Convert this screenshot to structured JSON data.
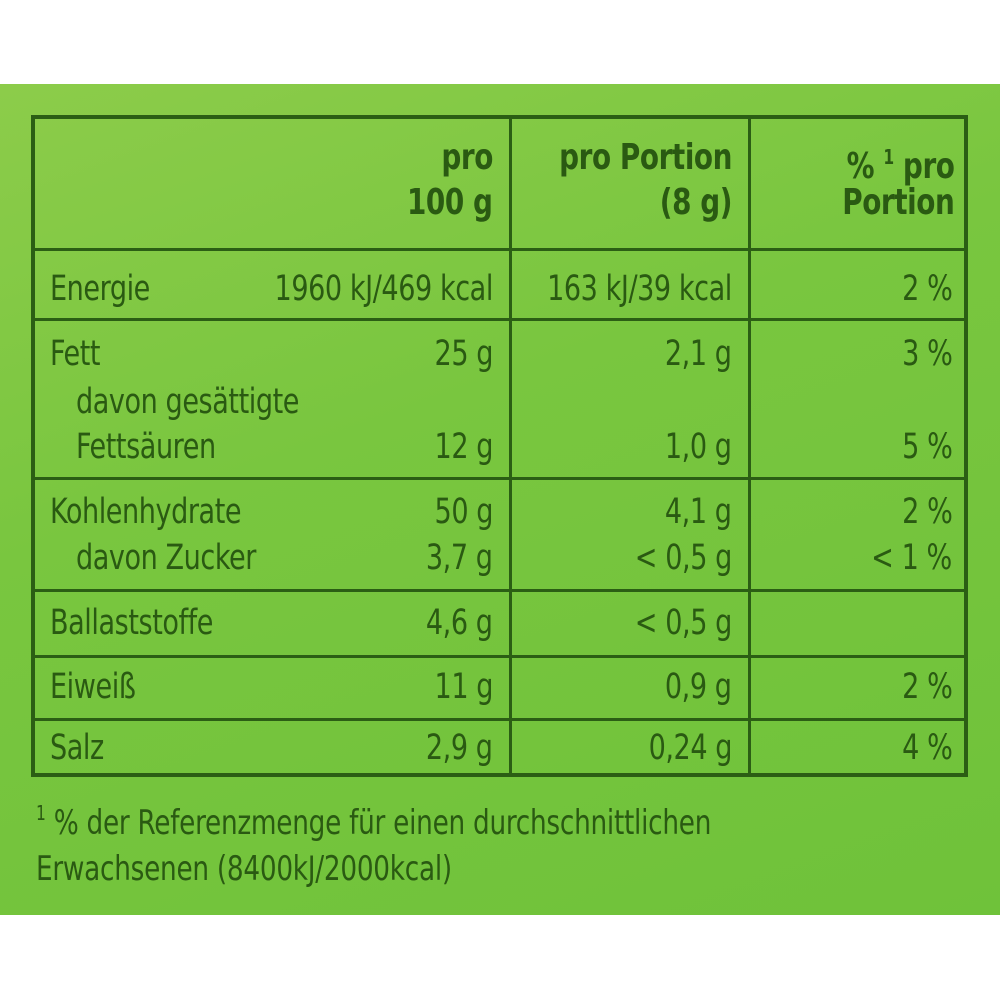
{
  "header": {
    "col1_line1": "pro",
    "col1_line2": "100 g",
    "col2_line1": "pro Portion",
    "col2_line2": "(8 g)",
    "col3_pct": "%",
    "col3_sup": "1",
    "col3_pro": "pro",
    "col3_line2": "Portion"
  },
  "rows": {
    "energie": {
      "label": "Energie",
      "per100": "1960 kJ/469 kcal",
      "portion": "163 kJ/39 kcal",
      "pct": "2 %"
    },
    "fett": {
      "label": "Fett",
      "per100": "25 g",
      "portion": "2,1 g",
      "pct": "3 %"
    },
    "fettsaeuren": {
      "label1": "davon gesättigte",
      "label2": "Fettsäuren",
      "per100": "12 g",
      "portion": "1,0 g",
      "pct": "5 %"
    },
    "kohlenhydrate": {
      "label": "Kohlenhydrate",
      "per100": "50 g",
      "portion": "4,1 g",
      "pct": "2 %"
    },
    "zucker": {
      "label": "davon Zucker",
      "per100": "3,7 g",
      "portion": "< 0,5 g",
      "pct": "< 1 %"
    },
    "ballaststoffe": {
      "label": "Ballaststoffe",
      "per100": "4,6 g",
      "portion": "< 0,5 g",
      "pct": ""
    },
    "eiweiss": {
      "label": "Eiweiß",
      "per100": "11 g",
      "portion": "0,9 g",
      "pct": "2 %"
    },
    "salz": {
      "label": "Salz",
      "per100": "2,9 g",
      "portion": "0,24 g",
      "pct": "4 %"
    }
  },
  "footnote": {
    "marker": "1",
    "line1": "% der Referenzmenge für einen durchschnittlichen",
    "line2": "Erwachsenen (8400kJ/2000kcal)"
  },
  "colors": {
    "background": "#79c63f",
    "text": "#2a5a12",
    "border": "#2b5e14"
  }
}
